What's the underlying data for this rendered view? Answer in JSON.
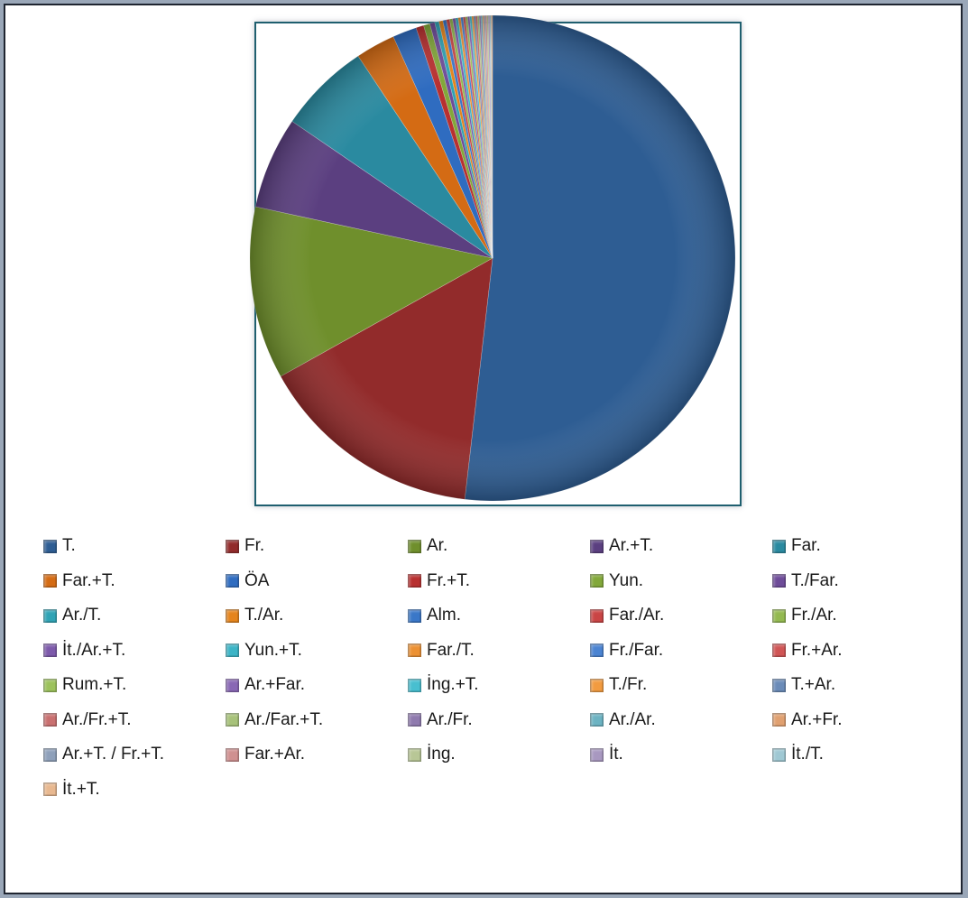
{
  "chart_data": {
    "type": "pie",
    "title": "",
    "legend_position": "bottom",
    "categories": [
      "T.",
      "Fr.",
      "Ar.",
      "Ar.+T.",
      "Far.",
      "Far.+T.",
      "ÖA",
      "Fr.+T.",
      "Yun.",
      "T./Far.",
      "Ar./T.",
      "T./Ar.",
      "Alm.",
      "Far./Ar.",
      "Fr./Ar.",
      "İt./Ar.+T.",
      "Yun.+T.",
      "Far./T.",
      "Fr./Far.",
      "Fr.+Ar.",
      "Rum.+T.",
      "Ar.+Far.",
      "İng.+T.",
      "T./Fr.",
      "T.+Ar.",
      "Ar./Fr.+T.",
      "Ar./Far.+T.",
      "Ar./Fr.",
      "Ar./Ar.",
      "Ar.+Fr.",
      "Ar.+T. / Fr.+T.",
      "Far.+Ar.",
      "İng.",
      "İt.",
      "İt./T.",
      "İt.+T."
    ],
    "values": [
      55.0,
      16.0,
      12.2,
      6.5,
      6.5,
      2.8,
      1.7,
      0.55,
      0.45,
      0.35,
      0.3,
      0.28,
      0.25,
      0.23,
      0.21,
      0.2,
      0.19,
      0.18,
      0.17,
      0.16,
      0.15,
      0.15,
      0.14,
      0.14,
      0.13,
      0.13,
      0.12,
      0.12,
      0.11,
      0.11,
      0.1,
      0.1,
      0.1,
      0.1,
      0.1,
      0.1
    ],
    "colors": [
      "#2e5d93",
      "#922b2b",
      "#6f8f2c",
      "#5b3f80",
      "#2a8aa0",
      "#d46b14",
      "#2f6cc0",
      "#b83030",
      "#82a83a",
      "#6e4c99",
      "#2fa3b5",
      "#e5841c",
      "#3a77c8",
      "#c94545",
      "#93b950",
      "#7d5aab",
      "#3cb4c6",
      "#ec9133",
      "#4b84d2",
      "#d05555",
      "#9cc25c",
      "#8968b5",
      "#48bfd0",
      "#f29b40",
      "#6a8bb8",
      "#c97070",
      "#a7c27a",
      "#8f7aae",
      "#6cb3c2",
      "#e0a070",
      "#8ea0ba",
      "#d09090",
      "#b8c796",
      "#a898c0",
      "#9fc8d3",
      "#e8b890"
    ]
  }
}
